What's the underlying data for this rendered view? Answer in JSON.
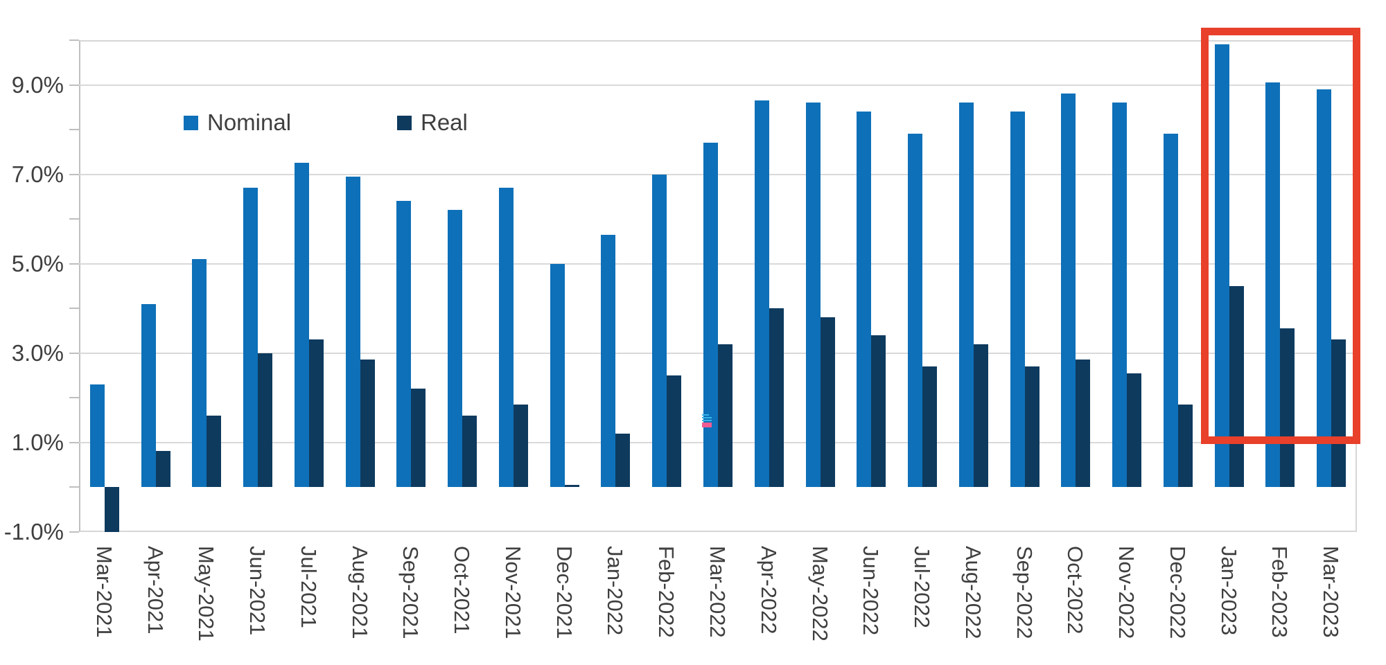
{
  "chart_data": {
    "type": "bar",
    "title": "",
    "xlabel": "",
    "ylabel": "",
    "unit": "%",
    "categories": [
      "Mar-2021",
      "Apr-2021",
      "May-2021",
      "Jun-2021",
      "Jul-2021",
      "Aug-2021",
      "Sep-2021",
      "Oct-2021",
      "Nov-2021",
      "Dec-2021",
      "Jan-2022",
      "Feb-2022",
      "Mar-2022",
      "Apr-2022",
      "May-2022",
      "Jun-2022",
      "Jul-2022",
      "Aug-2022",
      "Sep-2022",
      "Oct-2022",
      "Nov-2022",
      "Dec-2022",
      "Jan-2023",
      "Feb-2023",
      "Mar-2023"
    ],
    "series": [
      {
        "name": "Nominal",
        "color": "#0e70b8",
        "values": [
          2.3,
          4.1,
          5.1,
          6.7,
          7.25,
          6.95,
          6.4,
          6.2,
          6.7,
          5.0,
          5.65,
          7.0,
          7.7,
          8.65,
          8.6,
          8.4,
          7.9,
          8.6,
          8.4,
          8.8,
          8.6,
          7.9,
          9.9,
          9.05,
          8.9
        ]
      },
      {
        "name": "Real",
        "color": "#0e3a5e",
        "values": [
          -1.0,
          0.8,
          1.6,
          3.0,
          3.3,
          2.85,
          2.2,
          1.6,
          1.85,
          0.05,
          1.2,
          2.5,
          3.2,
          4.0,
          3.8,
          3.4,
          2.7,
          3.2,
          2.7,
          2.85,
          2.55,
          1.85,
          4.5,
          3.55,
          3.3
        ]
      }
    ],
    "y_axis": {
      "min": -1,
      "max": 10,
      "labeled_ticks": [
        {
          "value": 9,
          "label": "9.0%"
        },
        {
          "value": 7,
          "label": "7.0%"
        },
        {
          "value": 5,
          "label": "5.0%"
        },
        {
          "value": 3,
          "label": "3.0%"
        },
        {
          "value": 1,
          "label": "1.0%"
        },
        {
          "value": -1,
          "label": "-1.0%"
        }
      ],
      "minor_tick_step": 1,
      "gridlines_at": [
        9,
        7,
        5,
        3,
        1,
        -1
      ]
    },
    "legend": {
      "position": "top-inside",
      "entries": [
        "Nominal",
        "Real"
      ]
    },
    "annotations": {
      "highlight_box": {
        "color": "#e8402a",
        "months_enclosed": [
          "Jan-2023",
          "Feb-2023",
          "Mar-2023"
        ]
      }
    }
  },
  "legend": {
    "nominal_label": "Nominal",
    "real_label": "Real"
  },
  "colors": {
    "nominal": "#0e70b8",
    "real": "#0e3a5e",
    "highlight_red": "#e8402a",
    "gridline": "#d9d9d9",
    "axis": "#bfbfbf",
    "text": "#3f3f3f",
    "artifact_blue": "#35b5ea",
    "artifact_pink": "#f25c92"
  }
}
